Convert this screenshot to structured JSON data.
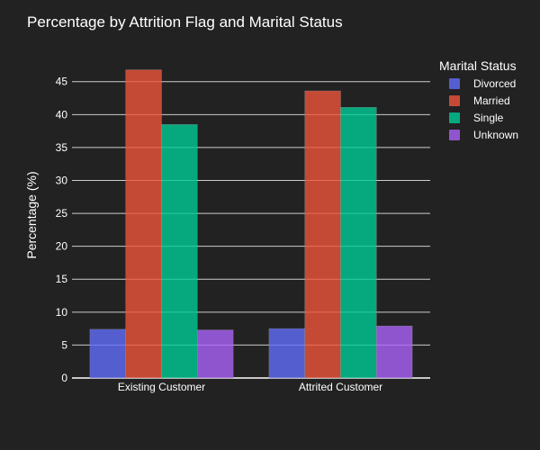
{
  "chart_data": {
    "type": "bar",
    "title": "Percentage by Attrition Flag and Marital Status",
    "xlabel": "",
    "ylabel": "Percentage (%)",
    "categories": [
      "Existing Customer",
      "Attrited Customer"
    ],
    "series": [
      {
        "name": "Divorced",
        "values": [
          7.4,
          7.5
        ],
        "color": "#636efa"
      },
      {
        "name": "Married",
        "values": [
          46.8,
          43.6
        ],
        "color": "#ef553b"
      },
      {
        "name": "Single",
        "values": [
          38.5,
          41.1
        ],
        "color": "#00cc96"
      },
      {
        "name": "Unknown",
        "values": [
          7.3,
          7.9
        ],
        "color": "#ab63fa"
      }
    ],
    "ylim": [
      0,
      49.2
    ],
    "yticks": [
      0,
      5,
      10,
      15,
      20,
      25,
      30,
      35,
      40,
      45
    ],
    "grid": true,
    "legend": {
      "title": "Marital Status",
      "position": "top-right"
    },
    "colors": {
      "background": "#222222",
      "gridline": "#cccccc",
      "text": "#ffffff"
    }
  }
}
